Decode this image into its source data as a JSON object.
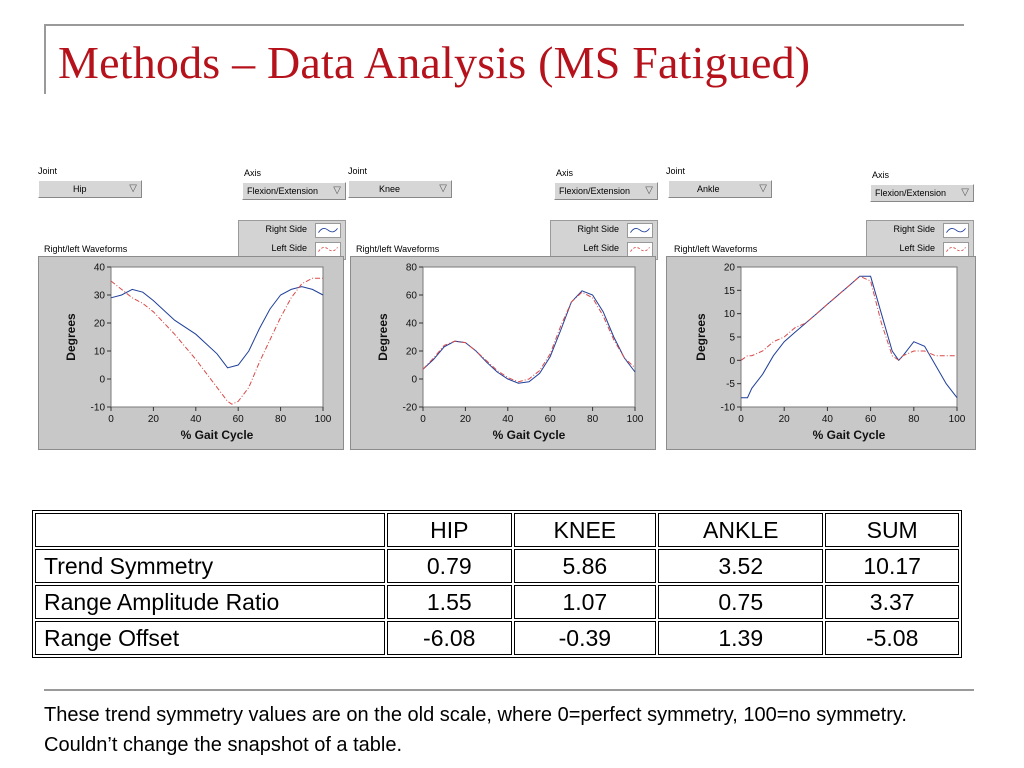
{
  "slide": {
    "title": "Methods – Data Analysis (MS Fatigued)",
    "footnote": "These trend symmetry values are on the old scale, where 0=perfect symmetry, 100=no symmetry.  Couldn’t change the snapshot of a table."
  },
  "colors": {
    "title": "#b5121b",
    "right_side": "#1f3f9a",
    "left_side": "#d94a4a"
  },
  "panels": [
    {
      "joint_label": "Joint",
      "joint_value": "Hip",
      "axis_label": "Axis",
      "axis_value": "Flexion/Extension",
      "legend_right": "Right Side",
      "legend_left": "Left Side",
      "waveform_label": "Right/left Waveforms"
    },
    {
      "joint_label": "Joint",
      "joint_value": "Knee",
      "axis_label": "Axis",
      "axis_value": "Flexion/Extension",
      "legend_right": "Right Side",
      "legend_left": "Left Side",
      "waveform_label": "Right/left Waveforms"
    },
    {
      "joint_label": "Joint",
      "joint_value": "Ankle",
      "axis_label": "Axis",
      "axis_value": "Flexion/Extension",
      "legend_right": "Right Side",
      "legend_left": "Left Side",
      "waveform_label": "Right/left Waveforms"
    }
  ],
  "chart_data": [
    {
      "type": "line",
      "xlabel": "% Gait Cycle",
      "ylabel": "Degrees",
      "xlim": [
        0,
        100
      ],
      "ylim": [
        -10,
        40
      ],
      "xticks": [
        "0",
        "20",
        "40",
        "60",
        "80",
        "100"
      ],
      "yticks": [
        "-10",
        "0",
        "10",
        "20",
        "30",
        "40"
      ],
      "series": [
        {
          "name": "Right Side",
          "x": [
            0,
            5,
            10,
            15,
            20,
            30,
            40,
            50,
            55,
            60,
            65,
            70,
            75,
            80,
            85,
            90,
            95,
            100
          ],
          "y": [
            29,
            30,
            32,
            31,
            28,
            21,
            16,
            9,
            4,
            5,
            10,
            18,
            25,
            30,
            32,
            33,
            32,
            30
          ]
        },
        {
          "name": "Left Side",
          "x": [
            0,
            5,
            10,
            15,
            20,
            30,
            40,
            50,
            55,
            57,
            60,
            65,
            70,
            75,
            80,
            85,
            90,
            95,
            100
          ],
          "y": [
            35,
            32,
            29,
            27,
            24,
            16,
            7,
            -3,
            -8,
            -9,
            -8,
            -3,
            6,
            14,
            22,
            29,
            34,
            36,
            36
          ]
        }
      ]
    },
    {
      "type": "line",
      "xlabel": "% Gait Cycle",
      "ylabel": "Degrees",
      "xlim": [
        0,
        100
      ],
      "ylim": [
        -20,
        80
      ],
      "xticks": [
        "0",
        "20",
        "40",
        "60",
        "80",
        "100"
      ],
      "yticks": [
        "-20",
        "0",
        "20",
        "40",
        "60",
        "80"
      ],
      "series": [
        {
          "name": "Right Side",
          "x": [
            0,
            5,
            10,
            15,
            20,
            25,
            30,
            35,
            40,
            45,
            50,
            55,
            60,
            65,
            70,
            75,
            80,
            85,
            90,
            95,
            100
          ],
          "y": [
            7,
            14,
            23,
            27,
            26,
            20,
            12,
            5,
            0,
            -3,
            -2,
            4,
            16,
            35,
            55,
            63,
            60,
            48,
            30,
            15,
            5
          ]
        },
        {
          "name": "Left Side",
          "x": [
            0,
            5,
            10,
            15,
            20,
            25,
            30,
            35,
            40,
            45,
            50,
            55,
            60,
            65,
            70,
            75,
            80,
            85,
            90,
            95,
            100
          ],
          "y": [
            7,
            15,
            24,
            27,
            26,
            20,
            13,
            6,
            1,
            -2,
            0,
            6,
            18,
            38,
            55,
            62,
            58,
            45,
            28,
            15,
            8
          ]
        }
      ]
    },
    {
      "type": "line",
      "xlabel": "% Gait Cycle",
      "ylabel": "Degrees",
      "xlim": [
        0,
        100
      ],
      "ylim": [
        -10,
        20
      ],
      "xticks": [
        "0",
        "20",
        "40",
        "60",
        "80",
        "100"
      ],
      "yticks": [
        "-10",
        "-5",
        "0",
        "5",
        "10",
        "15",
        "20"
      ],
      "series": [
        {
          "name": "Right Side",
          "x": [
            0,
            3,
            5,
            10,
            15,
            20,
            25,
            30,
            35,
            40,
            45,
            50,
            55,
            60,
            65,
            70,
            73,
            75,
            80,
            85,
            90,
            95,
            100
          ],
          "y": [
            -8,
            -8,
            -6,
            -3,
            1,
            4,
            6,
            8,
            10,
            12,
            14,
            16,
            18,
            18,
            10,
            2,
            0,
            1,
            4,
            3,
            -1,
            -5,
            -8
          ]
        },
        {
          "name": "Left Side",
          "x": [
            0,
            3,
            5,
            10,
            15,
            20,
            25,
            30,
            35,
            40,
            45,
            50,
            55,
            60,
            65,
            70,
            73,
            75,
            80,
            85,
            90,
            95,
            100
          ],
          "y": [
            0,
            1,
            1,
            2,
            4,
            5,
            7,
            8,
            10,
            12,
            14,
            16,
            18,
            17,
            8,
            1,
            0,
            1,
            2,
            2,
            1,
            1,
            1
          ]
        }
      ]
    }
  ],
  "table": {
    "headers": [
      "",
      "HIP",
      "KNEE",
      "ANKLE",
      "SUM"
    ],
    "rows": [
      [
        "Trend Symmetry",
        "0.79",
        "5.86",
        "3.52",
        "10.17"
      ],
      [
        "Range Amplitude Ratio",
        "1.55",
        "1.07",
        "0.75",
        "3.37"
      ],
      [
        "Range Offset",
        "-6.08",
        "-0.39",
        "1.39",
        "-5.08"
      ]
    ]
  }
}
